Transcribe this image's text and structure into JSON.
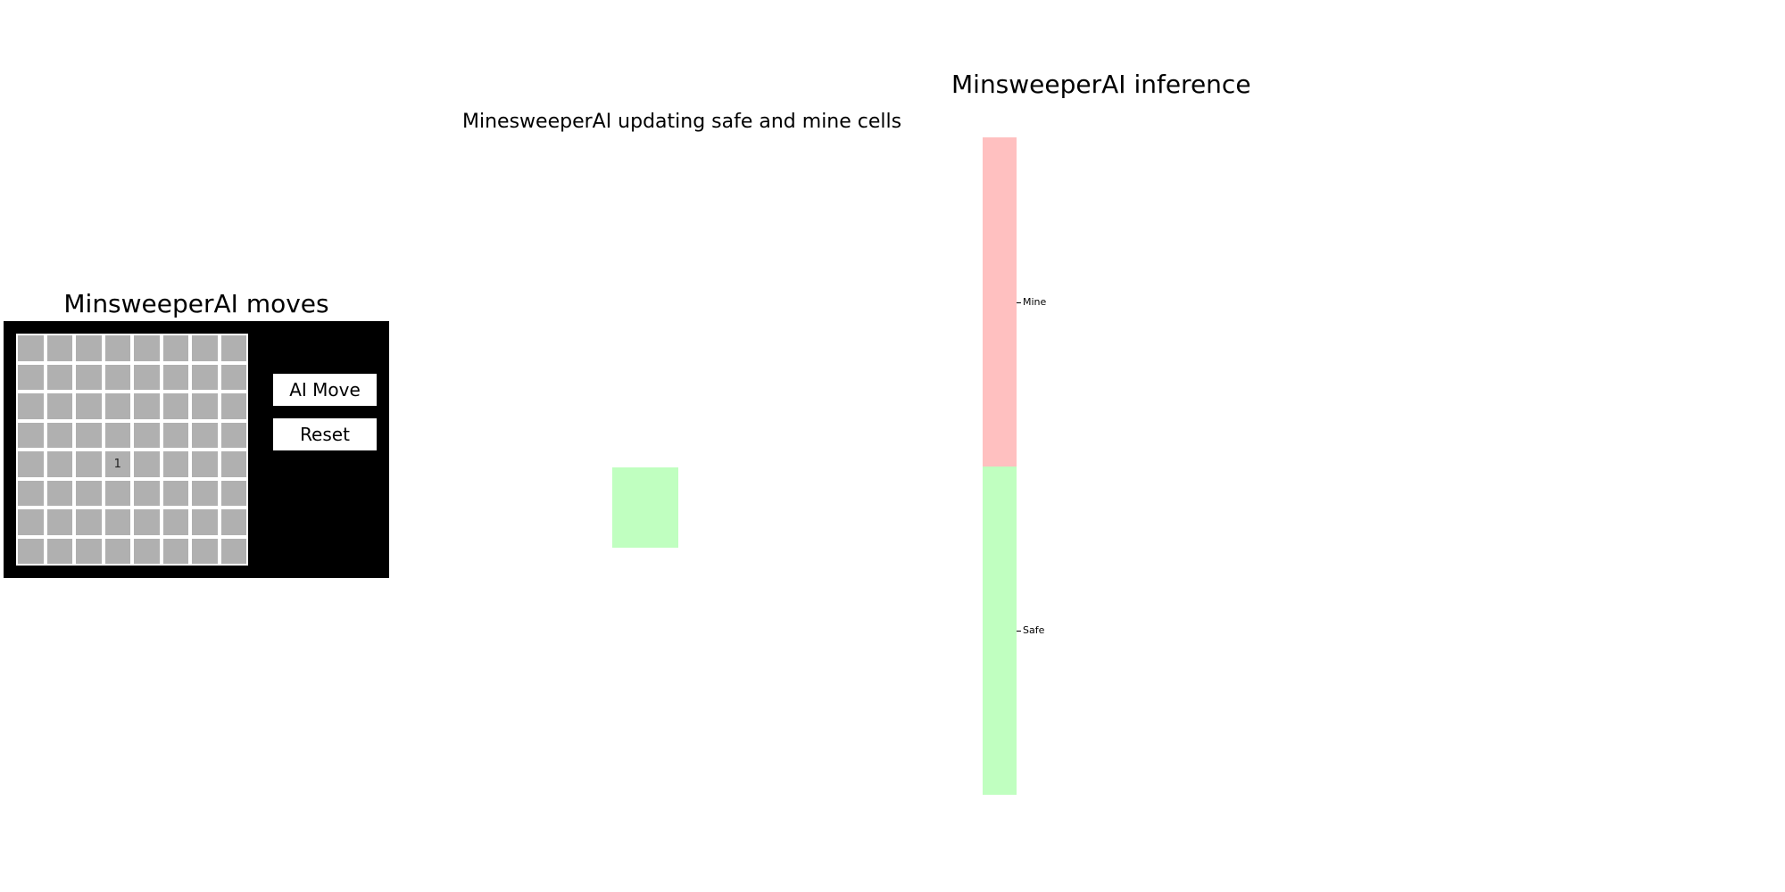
{
  "game_panel": {
    "title": "MinsweeperAI moves",
    "board": {
      "rows": 8,
      "cols": 8,
      "revealed": [
        {
          "row": 4,
          "col": 3,
          "value": "1"
        }
      ]
    },
    "buttons": {
      "ai_move_label": "AI Move",
      "reset_label": "Reset"
    },
    "colors": {
      "window_bg": "#000000",
      "cell_fill": "#b0b0b0",
      "cell_border": "#ffffff"
    }
  },
  "update_panel": {
    "title": "MinesweeperAI updating safe and mine cells",
    "highlight_color": "#c0ffc0"
  },
  "inference_panel": {
    "title": "MinsweeperAI inference",
    "legend": [
      {
        "label": "Mine",
        "color": "#ffc0c0"
      },
      {
        "label": "Safe",
        "color": "#c0ffc0"
      }
    ]
  }
}
